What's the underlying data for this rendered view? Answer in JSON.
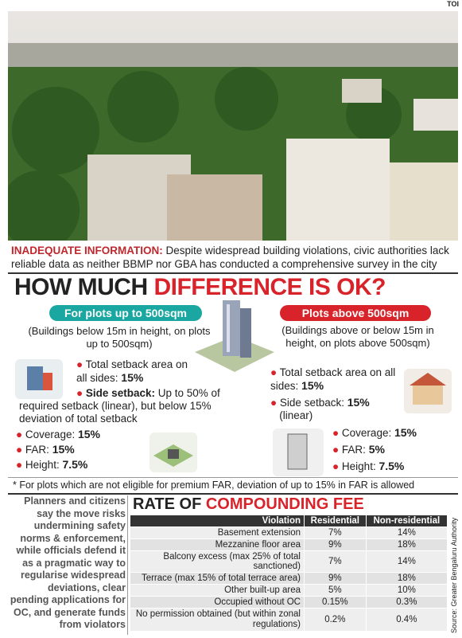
{
  "credit": "TOI",
  "photo_caption": {
    "lead": "INADEQUATE INFORMATION:",
    "text": "Despite widespread building violations, civic authorities lack reliable data as neither BBMP nor GBA has conducted a comprehensive survey in the city"
  },
  "headline": {
    "part1": "HOW MUCH",
    "part2": "DIFFERENCE IS OK?"
  },
  "left": {
    "badge": "For plots up to 500sqm",
    "note": "(Buildings below 15m in height, on plots up to 500sqm)",
    "items": [
      {
        "label": "Total setback area on all sides:",
        "value": "15%"
      },
      {
        "label": "Side setback:",
        "text": "Up to 50% of required setback (linear), but below 15% deviation of total setback"
      },
      {
        "label": "Coverage:",
        "value": "15%"
      },
      {
        "label": "FAR:",
        "value": "15%"
      },
      {
        "label": "Height:",
        "value": "7.5%"
      }
    ]
  },
  "right": {
    "badge": "Plots above 500sqm",
    "note": "(Buildings above or below 15m in height, on plots above 500sqm)",
    "items": [
      {
        "label": "Total setback area on all sides:",
        "value": "15%"
      },
      {
        "label": "Side setback:",
        "value": "15%",
        "text": "(linear)"
      },
      {
        "label": "Coverage:",
        "value": "15%"
      },
      {
        "label": "FAR:",
        "value": "5%"
      },
      {
        "label": "Height:",
        "value": "7.5%"
      }
    ]
  },
  "footnote": "* For plots which are not eligible for premium FAR, deviation of up to 15% in FAR is allowed",
  "sidebar": "Planners and citizens say the move risks undermining safety norms & enforcement, while officials defend it as a pragmatic way to regularise widespread deviations, clear pending applications for OC, and generate funds from violators",
  "table": {
    "title_part1": "RATE OF",
    "title_part2": "COMPOUNDING FEE",
    "columns": [
      "Violation",
      "Residential",
      "Non-residential"
    ],
    "rows": [
      [
        "Basement extension",
        "7%",
        "14%"
      ],
      [
        "Mezzanine floor area",
        "9%",
        "18%"
      ],
      [
        "Balcony excess (max 25% of total sanctioned)",
        "7%",
        "14%"
      ],
      [
        "Terrace (max 15% of total terrace area)",
        "9%",
        "18%"
      ],
      [
        "Other built-up area",
        "5%",
        "10%"
      ],
      [
        "Occupied without OC",
        "0.15%",
        "0.3%"
      ],
      [
        "No permission obtained (but within zonal regulations)",
        "0.2%",
        "0.4%"
      ]
    ],
    "source": "Source: Greater Bengaluru Authority"
  }
}
